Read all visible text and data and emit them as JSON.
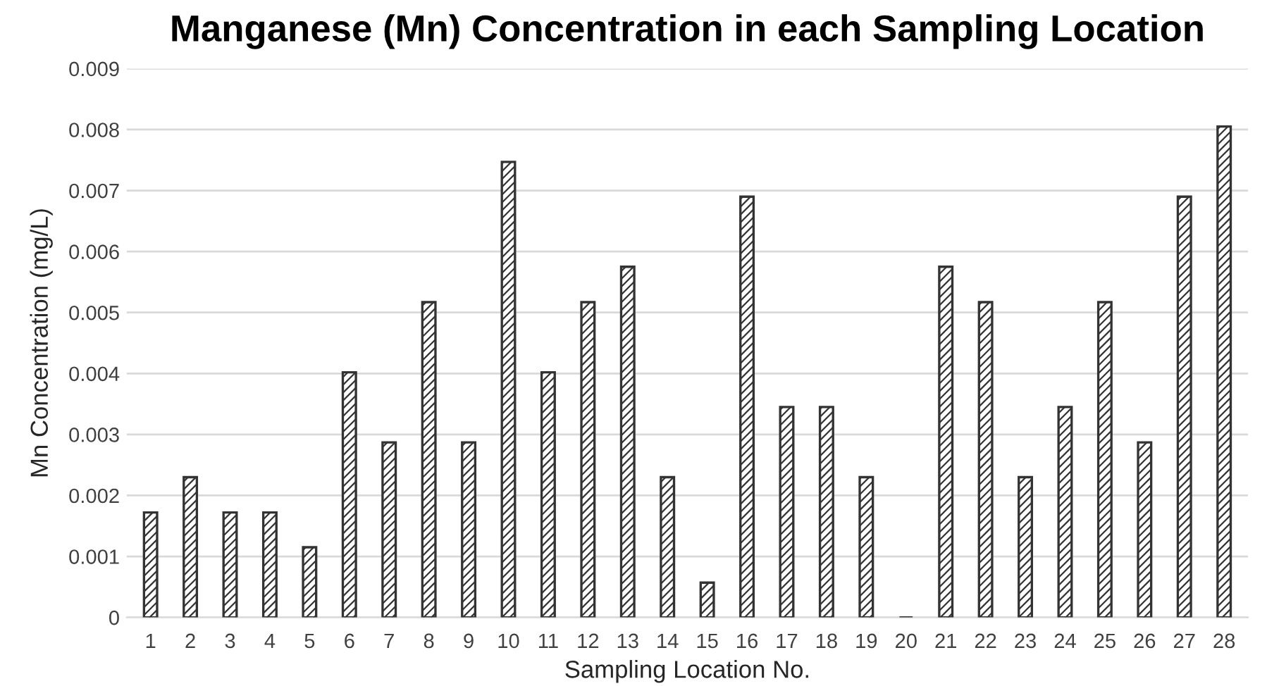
{
  "chart_data": {
    "type": "bar",
    "title": "Manganese (Mn) Concentration in each Sampling Location",
    "xlabel": "Sampling Location No.",
    "ylabel": "Mn Concentration (mg/L)",
    "categories": [
      "1",
      "2",
      "3",
      "4",
      "5",
      "6",
      "7",
      "8",
      "9",
      "10",
      "11",
      "12",
      "13",
      "14",
      "15",
      "16",
      "17",
      "18",
      "19",
      "20",
      "21",
      "22",
      "23",
      "24",
      "25",
      "26",
      "27",
      "28"
    ],
    "values": [
      0.00172,
      0.0023,
      0.00172,
      0.00172,
      0.00115,
      0.00402,
      0.00287,
      0.00517,
      0.00287,
      0.00747,
      0.00402,
      0.00517,
      0.00575,
      0.0023,
      0.00057,
      0.0069,
      0.00345,
      0.00345,
      0.0023,
      0,
      0.00575,
      0.00517,
      0.0023,
      0.00345,
      0.00517,
      0.00287,
      0.0069,
      0.00805
    ],
    "color": "#333333",
    "ylim": [
      0,
      0.009
    ],
    "yticks": [
      0,
      0.001,
      0.002,
      0.003,
      0.004,
      0.005,
      0.006,
      0.007,
      0.008,
      0.009
    ],
    "grid": "y",
    "legend": false
  }
}
